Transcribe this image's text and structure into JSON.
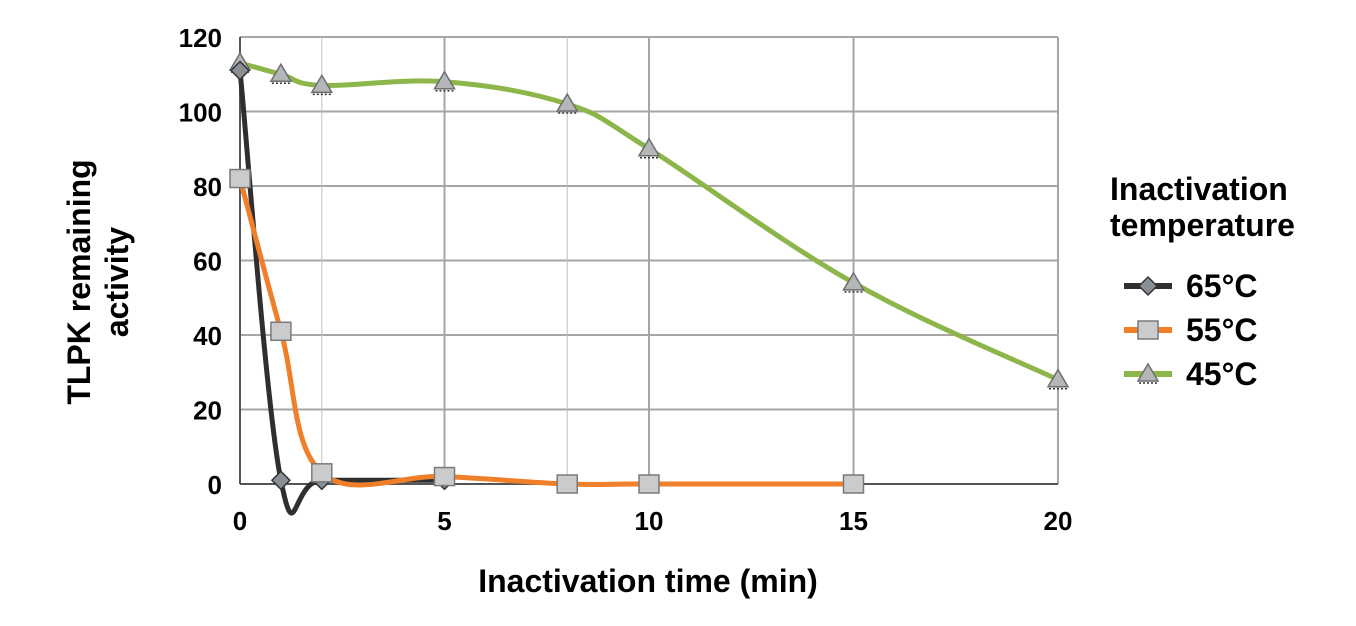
{
  "chart_data": {
    "type": "line",
    "xlabel": "Inactivation time (min)",
    "ylabel": [
      "TLPK remaining",
      "activity"
    ],
    "xlim": [
      0,
      20
    ],
    "ylim": [
      0,
      120
    ],
    "xticks": [
      0,
      5,
      10,
      15,
      20
    ],
    "yticks": [
      0,
      20,
      40,
      60,
      80,
      100,
      120
    ],
    "grid": true,
    "legend": {
      "title": [
        "Inactivation",
        "temperature"
      ],
      "placement": "right"
    },
    "series": [
      {
        "name": "65°C",
        "color": "#2f2f2f",
        "marker": "diamond",
        "x": [
          0,
          1,
          2,
          5
        ],
        "y": [
          111,
          1,
          1,
          1
        ]
      },
      {
        "name": "55°C",
        "color": "#f07f2a",
        "marker": "square",
        "x": [
          0,
          1,
          2,
          5,
          8,
          10,
          15
        ],
        "y": [
          82,
          41,
          3,
          2,
          0,
          0,
          0
        ]
      },
      {
        "name": "45°C",
        "color": "#8cb54a",
        "marker": "triangle",
        "x": [
          0,
          1,
          2,
          5,
          8,
          10,
          15,
          20
        ],
        "y": [
          113,
          110,
          107,
          108,
          102,
          90,
          54,
          28
        ]
      }
    ]
  }
}
